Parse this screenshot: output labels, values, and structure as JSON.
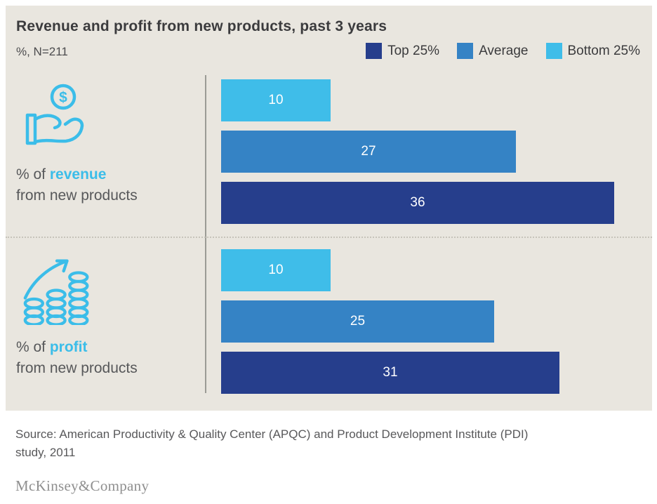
{
  "title": "Revenue and profit from new products, past 3 years",
  "subtitle": "%, N=211",
  "legend": [
    {
      "label": "Top 25%",
      "color": "#263e8c"
    },
    {
      "label": "Average",
      "color": "#3583c5"
    },
    {
      "label": "Bottom 25%",
      "color": "#3fbde9"
    }
  ],
  "chart_data": {
    "type": "bar",
    "orientation": "horizontal",
    "title": "Revenue and profit from new products, past 3 years",
    "units": "%",
    "sample_note": "%, N=211",
    "categories": [
      "% of revenue from new products",
      "% of profit from new products"
    ],
    "series": [
      {
        "name": "Top 25%",
        "color": "#263e8c",
        "values": [
          36,
          31
        ]
      },
      {
        "name": "Average",
        "color": "#3583c5",
        "values": [
          27,
          25
        ]
      },
      {
        "name": "Bottom 25%",
        "color": "#3fbde9",
        "values": [
          10,
          10
        ]
      }
    ],
    "bar_order_top_to_bottom": [
      "Bottom 25%",
      "Average",
      "Top 25%"
    ],
    "xlim": [
      0,
      36
    ],
    "value_labels": "inside-center-white",
    "legend_position": "top-right",
    "grid": false
  },
  "groups": [
    {
      "icon": "hand-coin-icon",
      "label_prefix": "% of ",
      "label_highlight": "revenue",
      "label_line2": "from new products"
    },
    {
      "icon": "coin-stacks-growth-icon",
      "label_prefix": "% of ",
      "label_highlight": "profit",
      "label_line2": "from new products"
    }
  ],
  "source": {
    "line1": "Source: American Productivity & Quality Center (APQC) and Product Development Institute (PDI)",
    "line2": "study, 2011"
  },
  "footer_logo": "McKinsey&Company",
  "colors": {
    "panel_background": "#e9e6df",
    "page_background": "#ffffff",
    "accent_cyan": "#3bbde9",
    "top25_blue": "#263e8c",
    "average_blue": "#3583c5",
    "bottom25_cyan": "#3fbde9",
    "text_dark": "#3b3b3d",
    "text_gray": "#57585a",
    "logo_gray": "#8f8f8f"
  }
}
